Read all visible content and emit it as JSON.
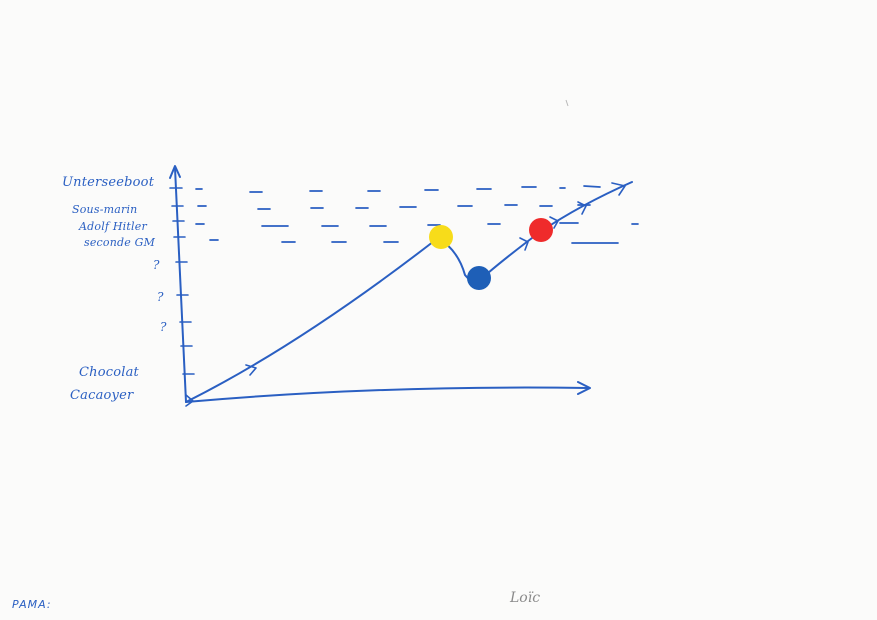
{
  "y_labels": {
    "unterseeboot": "Unterseeboot",
    "sous_marin": "Sous-marin",
    "adolf": "Adolf Hitler",
    "seconde_gm": "seconde GM",
    "q1": "?",
    "q2": "?",
    "q3": "?",
    "chocolat": "Chocolat",
    "cacaoyer": "Cacaoyer"
  },
  "footer": {
    "left": "PAMA:",
    "center": "Loïc"
  },
  "colors": {
    "ink": "#2a5fc2",
    "yellow": "#f7dc1a",
    "blue": "#1e5fb7",
    "red": "#ef2b2b",
    "pencil": "#8a8a8a"
  }
}
